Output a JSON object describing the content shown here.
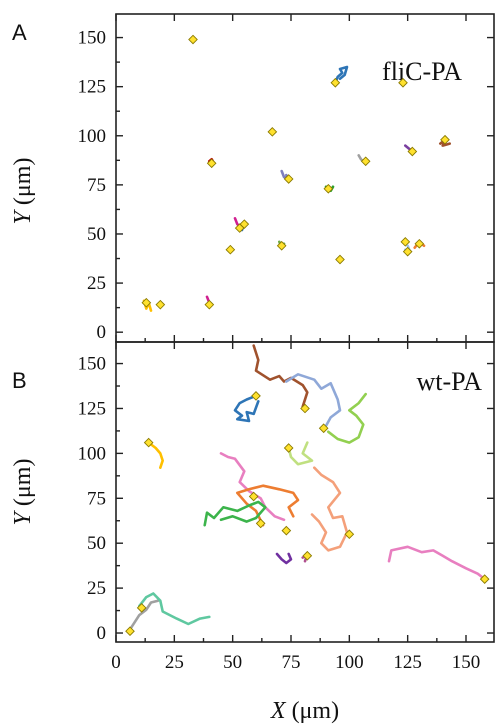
{
  "chart_data": [
    {
      "type": "scatter",
      "panel_label": "A",
      "title": "fliC-PA",
      "title_position": "top-right",
      "xlabel": "",
      "ylabel_italic": "Y",
      "ylabel_unit": "(μm)",
      "xlim": [
        0,
        162
      ],
      "ylim": [
        -5,
        162
      ],
      "xticks": [
        0,
        25,
        50,
        75,
        100,
        125,
        150
      ],
      "yticks": [
        0,
        25,
        50,
        75,
        100,
        125,
        150
      ],
      "ytick_labels": [
        "0",
        "25",
        "50",
        "75",
        "100",
        "125",
        "150"
      ],
      "marker_color": "#ffe12e",
      "tracks": [
        {
          "color": "#2e75b6",
          "points": [
            [
              94,
              127
            ],
            [
              95,
              130
            ],
            [
              97,
              132
            ],
            [
              96,
              134
            ],
            [
              99,
              135
            ],
            [
              98,
              131
            ],
            [
              96,
              129
            ]
          ]
        },
        {
          "color": "#7f7fbf",
          "points": [
            [
              71,
              82
            ],
            [
              72,
              79
            ],
            [
              74,
              78
            ],
            [
              73,
              80
            ]
          ]
        },
        {
          "color": "#a0a0a0",
          "points": [
            [
              104,
              90
            ],
            [
              105,
              88
            ],
            [
              106,
              87
            ]
          ]
        },
        {
          "color": "#7a3fa0",
          "points": [
            [
              124,
              95
            ],
            [
              126,
              93
            ],
            [
              127,
              92
            ]
          ]
        },
        {
          "color": "#a0522d",
          "points": [
            [
              139,
              96
            ],
            [
              141,
              98
            ],
            [
              140,
              95
            ],
            [
              143,
              96
            ]
          ]
        },
        {
          "color": "#c00000",
          "points": [
            [
              40,
              87
            ],
            [
              41,
              88
            ],
            [
              42,
              86
            ]
          ]
        },
        {
          "color": "#d02090",
          "points": [
            [
              51,
              58
            ],
            [
              52,
              55
            ],
            [
              53,
              54
            ]
          ]
        },
        {
          "color": "#2e75b6",
          "points": [
            [
              53,
              53
            ],
            [
              55,
              55
            ],
            [
              54,
              52
            ]
          ]
        },
        {
          "color": "#2ca02c",
          "points": [
            [
              90,
              74
            ],
            [
              91,
              73
            ],
            [
              92,
              72
            ],
            [
              93,
              74
            ]
          ]
        },
        {
          "color": "#70ad47",
          "points": [
            [
              70,
              46
            ],
            [
              71,
              43
            ],
            [
              72,
              45
            ]
          ]
        },
        {
          "color": "#ed7d31",
          "points": [
            [
              128,
              43
            ],
            [
              130,
              46
            ],
            [
              132,
              44
            ]
          ]
        },
        {
          "color": "#9dc3e6",
          "points": [
            [
              124,
              42
            ],
            [
              126,
              41
            ],
            [
              125,
              44
            ]
          ]
        },
        {
          "color": "#ffc000",
          "points": [
            [
              12,
              16
            ],
            [
              13,
              12
            ],
            [
              14,
              15
            ],
            [
              15,
              11
            ]
          ]
        },
        {
          "color": "#d02090",
          "points": [
            [
              39,
              18
            ],
            [
              40,
              15
            ],
            [
              41,
              14
            ]
          ]
        }
      ],
      "markers": [
        [
          33,
          149
        ],
        [
          94,
          127
        ],
        [
          123,
          127
        ],
        [
          67,
          102
        ],
        [
          41,
          86
        ],
        [
          74,
          78
        ],
        [
          91,
          73
        ],
        [
          107,
          87
        ],
        [
          127,
          92
        ],
        [
          141,
          98
        ],
        [
          55,
          55
        ],
        [
          53,
          53
        ],
        [
          71,
          44
        ],
        [
          49,
          42
        ],
        [
          96,
          37
        ],
        [
          124,
          46
        ],
        [
          125,
          41
        ],
        [
          130,
          45
        ],
        [
          13,
          15
        ],
        [
          19,
          14
        ],
        [
          40,
          14
        ]
      ]
    },
    {
      "type": "scatter",
      "panel_label": "B",
      "title": "wt-PA",
      "title_position": "top-right",
      "xlabel_italic": "X",
      "xlabel_unit": "(μm)",
      "ylabel_italic": "Y",
      "ylabel_unit": "(μm)",
      "xlim": [
        0,
        162
      ],
      "ylim": [
        -5,
        162
      ],
      "xticks": [
        0,
        25,
        50,
        75,
        100,
        125,
        150
      ],
      "xtick_labels": [
        "0",
        "25",
        "50",
        "75",
        "100",
        "125",
        "150"
      ],
      "yticks": [
        0,
        25,
        50,
        75,
        100,
        125,
        150
      ],
      "ytick_labels": [
        "0",
        "25",
        "50",
        "75",
        "100",
        "125",
        "150"
      ],
      "marker_color": "#ffe12e",
      "tracks": [
        {
          "color": "#a0522d",
          "points": [
            [
              59,
              160
            ],
            [
              61,
              152
            ],
            [
              60,
              146
            ],
            [
              66,
              141
            ],
            [
              70,
              143
            ],
            [
              72,
              140
            ],
            [
              75,
              142
            ],
            [
              80,
              138
            ],
            [
              82,
              134
            ],
            [
              80,
              126
            ]
          ]
        },
        {
          "color": "#2e75b6",
          "points": [
            [
              60,
              132
            ],
            [
              56,
              130
            ],
            [
              53,
              128
            ],
            [
              51,
              124
            ],
            [
              54,
              121
            ],
            [
              52,
              119
            ],
            [
              57,
              118
            ],
            [
              56,
              123
            ],
            [
              59,
              122
            ],
            [
              61,
              129
            ]
          ]
        },
        {
          "color": "#8fa8d8",
          "points": [
            [
              73,
              140
            ],
            [
              78,
              144
            ],
            [
              85,
              141
            ],
            [
              88,
              136
            ],
            [
              92,
              139
            ],
            [
              95,
              130
            ],
            [
              96,
              124
            ],
            [
              92,
              120
            ],
            [
              89,
              113
            ]
          ]
        },
        {
          "color": "#92d050",
          "points": [
            [
              91,
              112
            ],
            [
              95,
              108
            ],
            [
              100,
              106
            ],
            [
              104,
              109
            ],
            [
              106,
              116
            ],
            [
              103,
              121
            ],
            [
              100,
              124
            ],
            [
              104,
              128
            ],
            [
              107,
              133
            ]
          ]
        },
        {
          "color": "#c0e080",
          "points": [
            [
              74,
              103
            ],
            [
              75,
              98
            ],
            [
              78,
              94
            ],
            [
              84,
              96
            ],
            [
              80,
              100
            ],
            [
              82,
              106
            ]
          ]
        },
        {
          "color": "#f4a07a",
          "points": [
            [
              85,
              92
            ],
            [
              88,
              88
            ],
            [
              93,
              84
            ],
            [
              96,
              78
            ],
            [
              91,
              70
            ],
            [
              93,
              64
            ],
            [
              97,
              65
            ],
            [
              99,
              56
            ],
            [
              96,
              48
            ],
            [
              91,
              46
            ],
            [
              88,
              50
            ],
            [
              90,
              56
            ],
            [
              87,
              62
            ],
            [
              84,
              66
            ]
          ]
        },
        {
          "color": "#e87fc0",
          "points": [
            [
              45,
              100
            ],
            [
              48,
              98
            ],
            [
              51,
              97
            ],
            [
              55,
              90
            ],
            [
              53,
              84
            ],
            [
              57,
              79
            ],
            [
              62,
              75
            ],
            [
              64,
              70
            ],
            [
              68,
              65
            ],
            [
              72,
              63
            ]
          ]
        },
        {
          "color": "#ed7d31",
          "points": [
            [
              63,
              60
            ],
            [
              60,
              68
            ],
            [
              56,
              72
            ],
            [
              52,
              78
            ],
            [
              57,
              80
            ],
            [
              63,
              82
            ],
            [
              70,
              80
            ],
            [
              76,
              78
            ],
            [
              78,
              74
            ],
            [
              74,
              70
            ],
            [
              76,
              65
            ]
          ]
        },
        {
          "color": "#3cb44b",
          "points": [
            [
              38,
              60
            ],
            [
              39,
              67
            ],
            [
              42,
              64
            ],
            [
              46,
              70
            ],
            [
              52,
              68
            ],
            [
              57,
              71
            ],
            [
              61,
              73
            ],
            [
              64,
              70
            ],
            [
              60,
              64
            ],
            [
              56,
              62
            ],
            [
              50,
              65
            ],
            [
              45,
              63
            ]
          ]
        },
        {
          "color": "#7030a0",
          "points": [
            [
              69,
              44
            ],
            [
              71,
              41
            ],
            [
              73,
              39
            ],
            [
              75,
              41
            ],
            [
              74,
              44
            ]
          ]
        },
        {
          "color": "#b05090",
          "points": [
            [
              80,
              42
            ],
            [
              82,
              44
            ],
            [
              81,
              40
            ]
          ]
        },
        {
          "color": "#e87fc0",
          "points": [
            [
              117,
              40
            ],
            [
              118,
              46
            ],
            [
              125,
              48
            ],
            [
              131,
              45
            ],
            [
              136,
              46
            ],
            [
              140,
              43
            ],
            [
              144,
              40
            ],
            [
              150,
              36
            ],
            [
              155,
              33
            ],
            [
              158,
              30
            ]
          ]
        },
        {
          "color": "#ffc000",
          "points": [
            [
              14,
              106
            ],
            [
              17,
              103
            ],
            [
              19,
              100
            ],
            [
              20,
              96
            ],
            [
              19,
              92
            ]
          ]
        },
        {
          "color": "#a0a0a0",
          "points": [
            [
              6,
              2
            ],
            [
              8,
              6
            ],
            [
              10,
              10
            ],
            [
              13,
              13
            ],
            [
              15,
              17
            ],
            [
              18,
              18
            ]
          ]
        },
        {
          "color": "#5fc8a0",
          "points": [
            [
              10,
              15
            ],
            [
              13,
              20
            ],
            [
              16,
              22
            ],
            [
              19,
              18
            ],
            [
              20,
              12
            ],
            [
              26,
              8
            ],
            [
              31,
              5
            ],
            [
              36,
              8
            ],
            [
              40,
              9
            ]
          ]
        }
      ],
      "markers": [
        [
          60,
          132
        ],
        [
          81,
          125
        ],
        [
          89,
          114
        ],
        [
          14,
          106
        ],
        [
          74,
          103
        ],
        [
          59,
          76
        ],
        [
          62,
          61
        ],
        [
          73,
          57
        ],
        [
          100,
          55
        ],
        [
          82,
          43
        ],
        [
          158,
          30
        ],
        [
          11,
          14
        ],
        [
          6,
          1
        ]
      ]
    }
  ]
}
